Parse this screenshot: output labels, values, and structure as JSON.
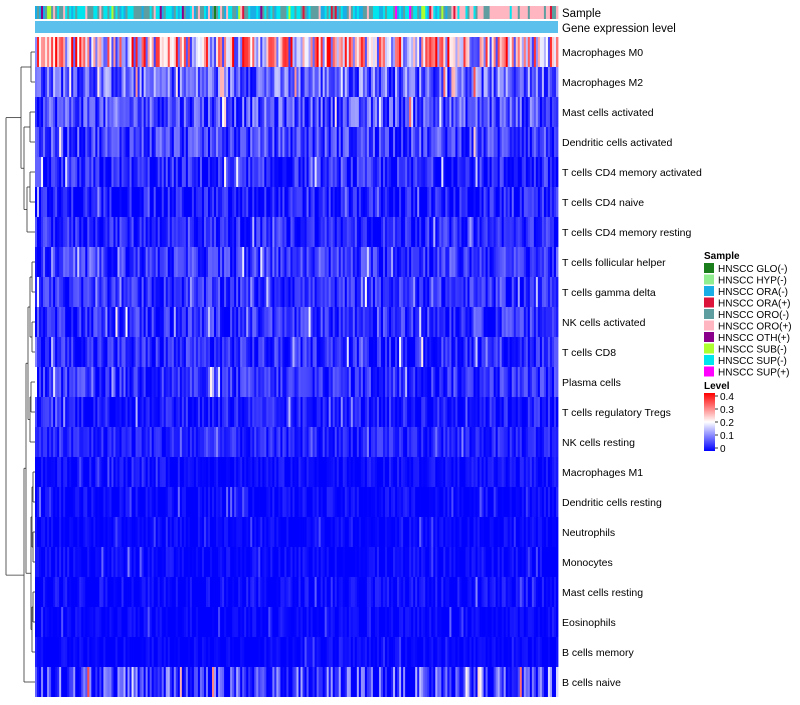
{
  "chart_data": {
    "type": "heatmap",
    "title": "",
    "annotation_labels": {
      "sample": "Sample",
      "level": "Gene expression level"
    },
    "rows": [
      "Macrophages M0",
      "Macrophages M2",
      "Mast cells activated",
      "Dendritic cells activated",
      "T cells CD4 memory activated",
      "T cells CD4 naive",
      "T cells CD4 memory resting",
      "T cells follicular helper",
      "T cells gamma delta",
      "NK cells activated",
      "T cells CD8",
      "Plasma cells",
      "T cells regulatory  Tregs",
      "NK cells resting",
      "Macrophages M1",
      "Dendritic cells resting",
      "Neutrophils",
      "Monocytes",
      "Mast cells resting",
      "Eosinophils",
      "B cells memory",
      "B cells naive"
    ],
    "row_profiles": [
      [
        0.22,
        0.18
      ],
      [
        0.08,
        0.08
      ],
      [
        0.06,
        0.07
      ],
      [
        0.05,
        0.06
      ],
      [
        0.02,
        0.06
      ],
      [
        0.015,
        0.05
      ],
      [
        0.03,
        0.045
      ],
      [
        0.04,
        0.05
      ],
      [
        0.035,
        0.045
      ],
      [
        0.035,
        0.05
      ],
      [
        0.03,
        0.05
      ],
      [
        0.035,
        0.05
      ],
      [
        0.02,
        0.04
      ],
      [
        0.025,
        0.035
      ],
      [
        0.008,
        0.025
      ],
      [
        0.005,
        0.025
      ],
      [
        0.003,
        0.02
      ],
      [
        0.004,
        0.025
      ],
      [
        0.006,
        0.03
      ],
      [
        0.003,
        0.02
      ],
      [
        0.002,
        0.02
      ],
      [
        0.04,
        0.1
      ]
    ],
    "sample_count": 260,
    "sample_groups": [
      {
        "name": "HNSCC GLO(-)",
        "color": "#1a7f1a"
      },
      {
        "name": "HNSCC HYP(-)",
        "color": "#90ee90"
      },
      {
        "name": "HNSCC ORA(-)",
        "color": "#1aaee6"
      },
      {
        "name": "HNSCC ORA(+)",
        "color": "#dc143c"
      },
      {
        "name": "HNSCC ORO(-)",
        "color": "#5f9ea0"
      },
      {
        "name": "HNSCC ORO(+)",
        "color": "#ffb6c1"
      },
      {
        "name": "HNSCC OTH(+)",
        "color": "#8b008b"
      },
      {
        "name": "HNSCC SUB(-)",
        "color": "#adff2f"
      },
      {
        "name": "HNSCC SUP(-)",
        "color": "#00e5ee"
      },
      {
        "name": "HNSCC SUP(+)",
        "color": "#ff00ff"
      }
    ],
    "level_bar_color": "#5bc0eb",
    "legend": {
      "sample_title": "Sample",
      "level_title": "Level",
      "level_ticks": [
        "0.4",
        "0.3",
        "0.2",
        "0.1",
        "0"
      ],
      "level_range": [
        0,
        0.4
      ],
      "colors": {
        "low": "#0000ff",
        "mid": "#ffffff",
        "high": "#ff0000"
      }
    }
  }
}
